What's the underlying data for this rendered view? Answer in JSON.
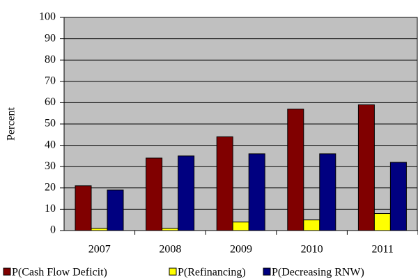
{
  "chart_data": {
    "type": "bar",
    "y_label": "Percent",
    "categories": [
      "2007",
      "2008",
      "2009",
      "2010",
      "2011"
    ],
    "series": [
      {
        "name": "P(Cash Flow Deficit)",
        "color": "#800000",
        "values": [
          21,
          34,
          44,
          57,
          59
        ]
      },
      {
        "name": "P(Refinancing)",
        "color": "#ffff00",
        "values": [
          1,
          1,
          4,
          5,
          8
        ]
      },
      {
        "name": "P(Decreasing RNW)",
        "color": "#000080",
        "values": [
          19,
          35,
          36,
          36,
          32
        ]
      }
    ],
    "ylim": [
      0,
      100
    ],
    "yticks": [
      0,
      10,
      20,
      30,
      40,
      50,
      60,
      70,
      80,
      90,
      100
    ],
    "grid": true,
    "legend": "bottom",
    "plot_background": "#c0c0c0"
  }
}
